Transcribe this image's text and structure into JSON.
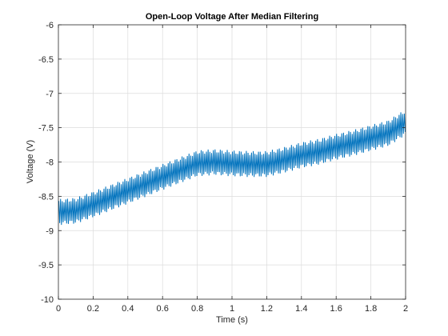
{
  "chart_data": {
    "type": "line",
    "title": "Open-Loop Voltage After Median Filtering",
    "xlabel": "Time (s)",
    "ylabel": "Voltage (V)",
    "xlim": [
      0,
      2
    ],
    "ylim": [
      -10,
      -6
    ],
    "xticks": [
      0,
      0.2,
      0.4,
      0.6,
      0.8,
      1,
      1.2,
      1.4,
      1.6,
      1.8,
      2
    ],
    "xtick_labels": [
      "0",
      "0.2",
      "0.4",
      "0.6",
      "0.8",
      "1",
      "1.2",
      "1.4",
      "1.6",
      "1.8",
      "2"
    ],
    "yticks": [
      -10,
      -9.5,
      -9,
      -8.5,
      -8,
      -7.5,
      -7,
      -6.5,
      -6
    ],
    "ytick_labels": [
      "-10",
      "-9.5",
      "-9",
      "-8.5",
      "-8",
      "-7.5",
      "-7",
      "-6.5",
      "-6"
    ],
    "grid": true,
    "series": [
      {
        "color": "#0072BD",
        "oscillation_amplitude": 0.19,
        "oscillation_cycles": 200,
        "trend": {
          "x": [
            0,
            0.1,
            0.2,
            0.3,
            0.4,
            0.5,
            0.6,
            0.7,
            0.8,
            0.9,
            1.0,
            1.1,
            1.2,
            1.3,
            1.4,
            1.5,
            1.6,
            1.7,
            1.8,
            1.9,
            2.0
          ],
          "y": [
            -8.73,
            -8.71,
            -8.62,
            -8.52,
            -8.42,
            -8.32,
            -8.22,
            -8.12,
            -8.02,
            -8.0,
            -8.02,
            -8.03,
            -8.03,
            -7.97,
            -7.9,
            -7.85,
            -7.78,
            -7.72,
            -7.65,
            -7.58,
            -7.42
          ]
        }
      }
    ]
  }
}
